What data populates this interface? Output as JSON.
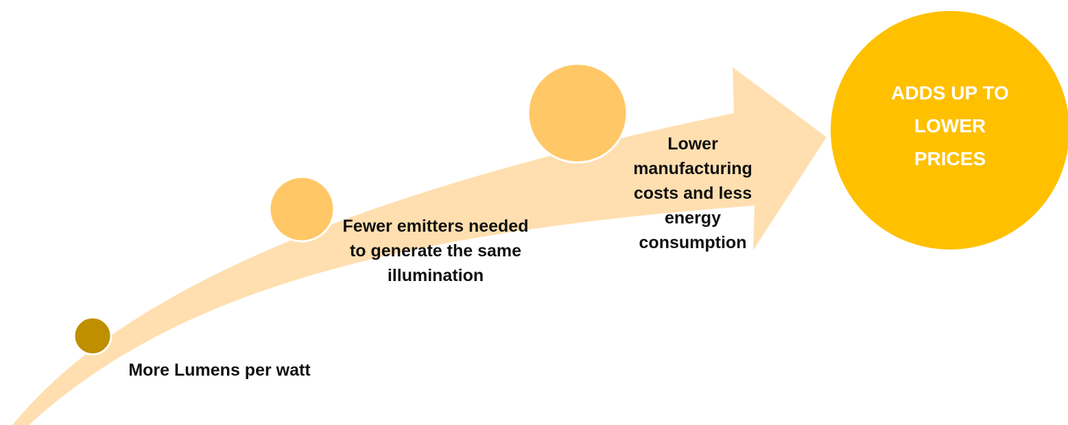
{
  "nodes": [
    {
      "label": "More Lumens per watt"
    },
    {
      "label": "Fewer emitters needed to generate the same illumination"
    },
    {
      "label": "Lower manufacturing costs and less energy consumption"
    },
    {
      "label": "ADDS UP TO LOWER PRICES"
    }
  ]
}
